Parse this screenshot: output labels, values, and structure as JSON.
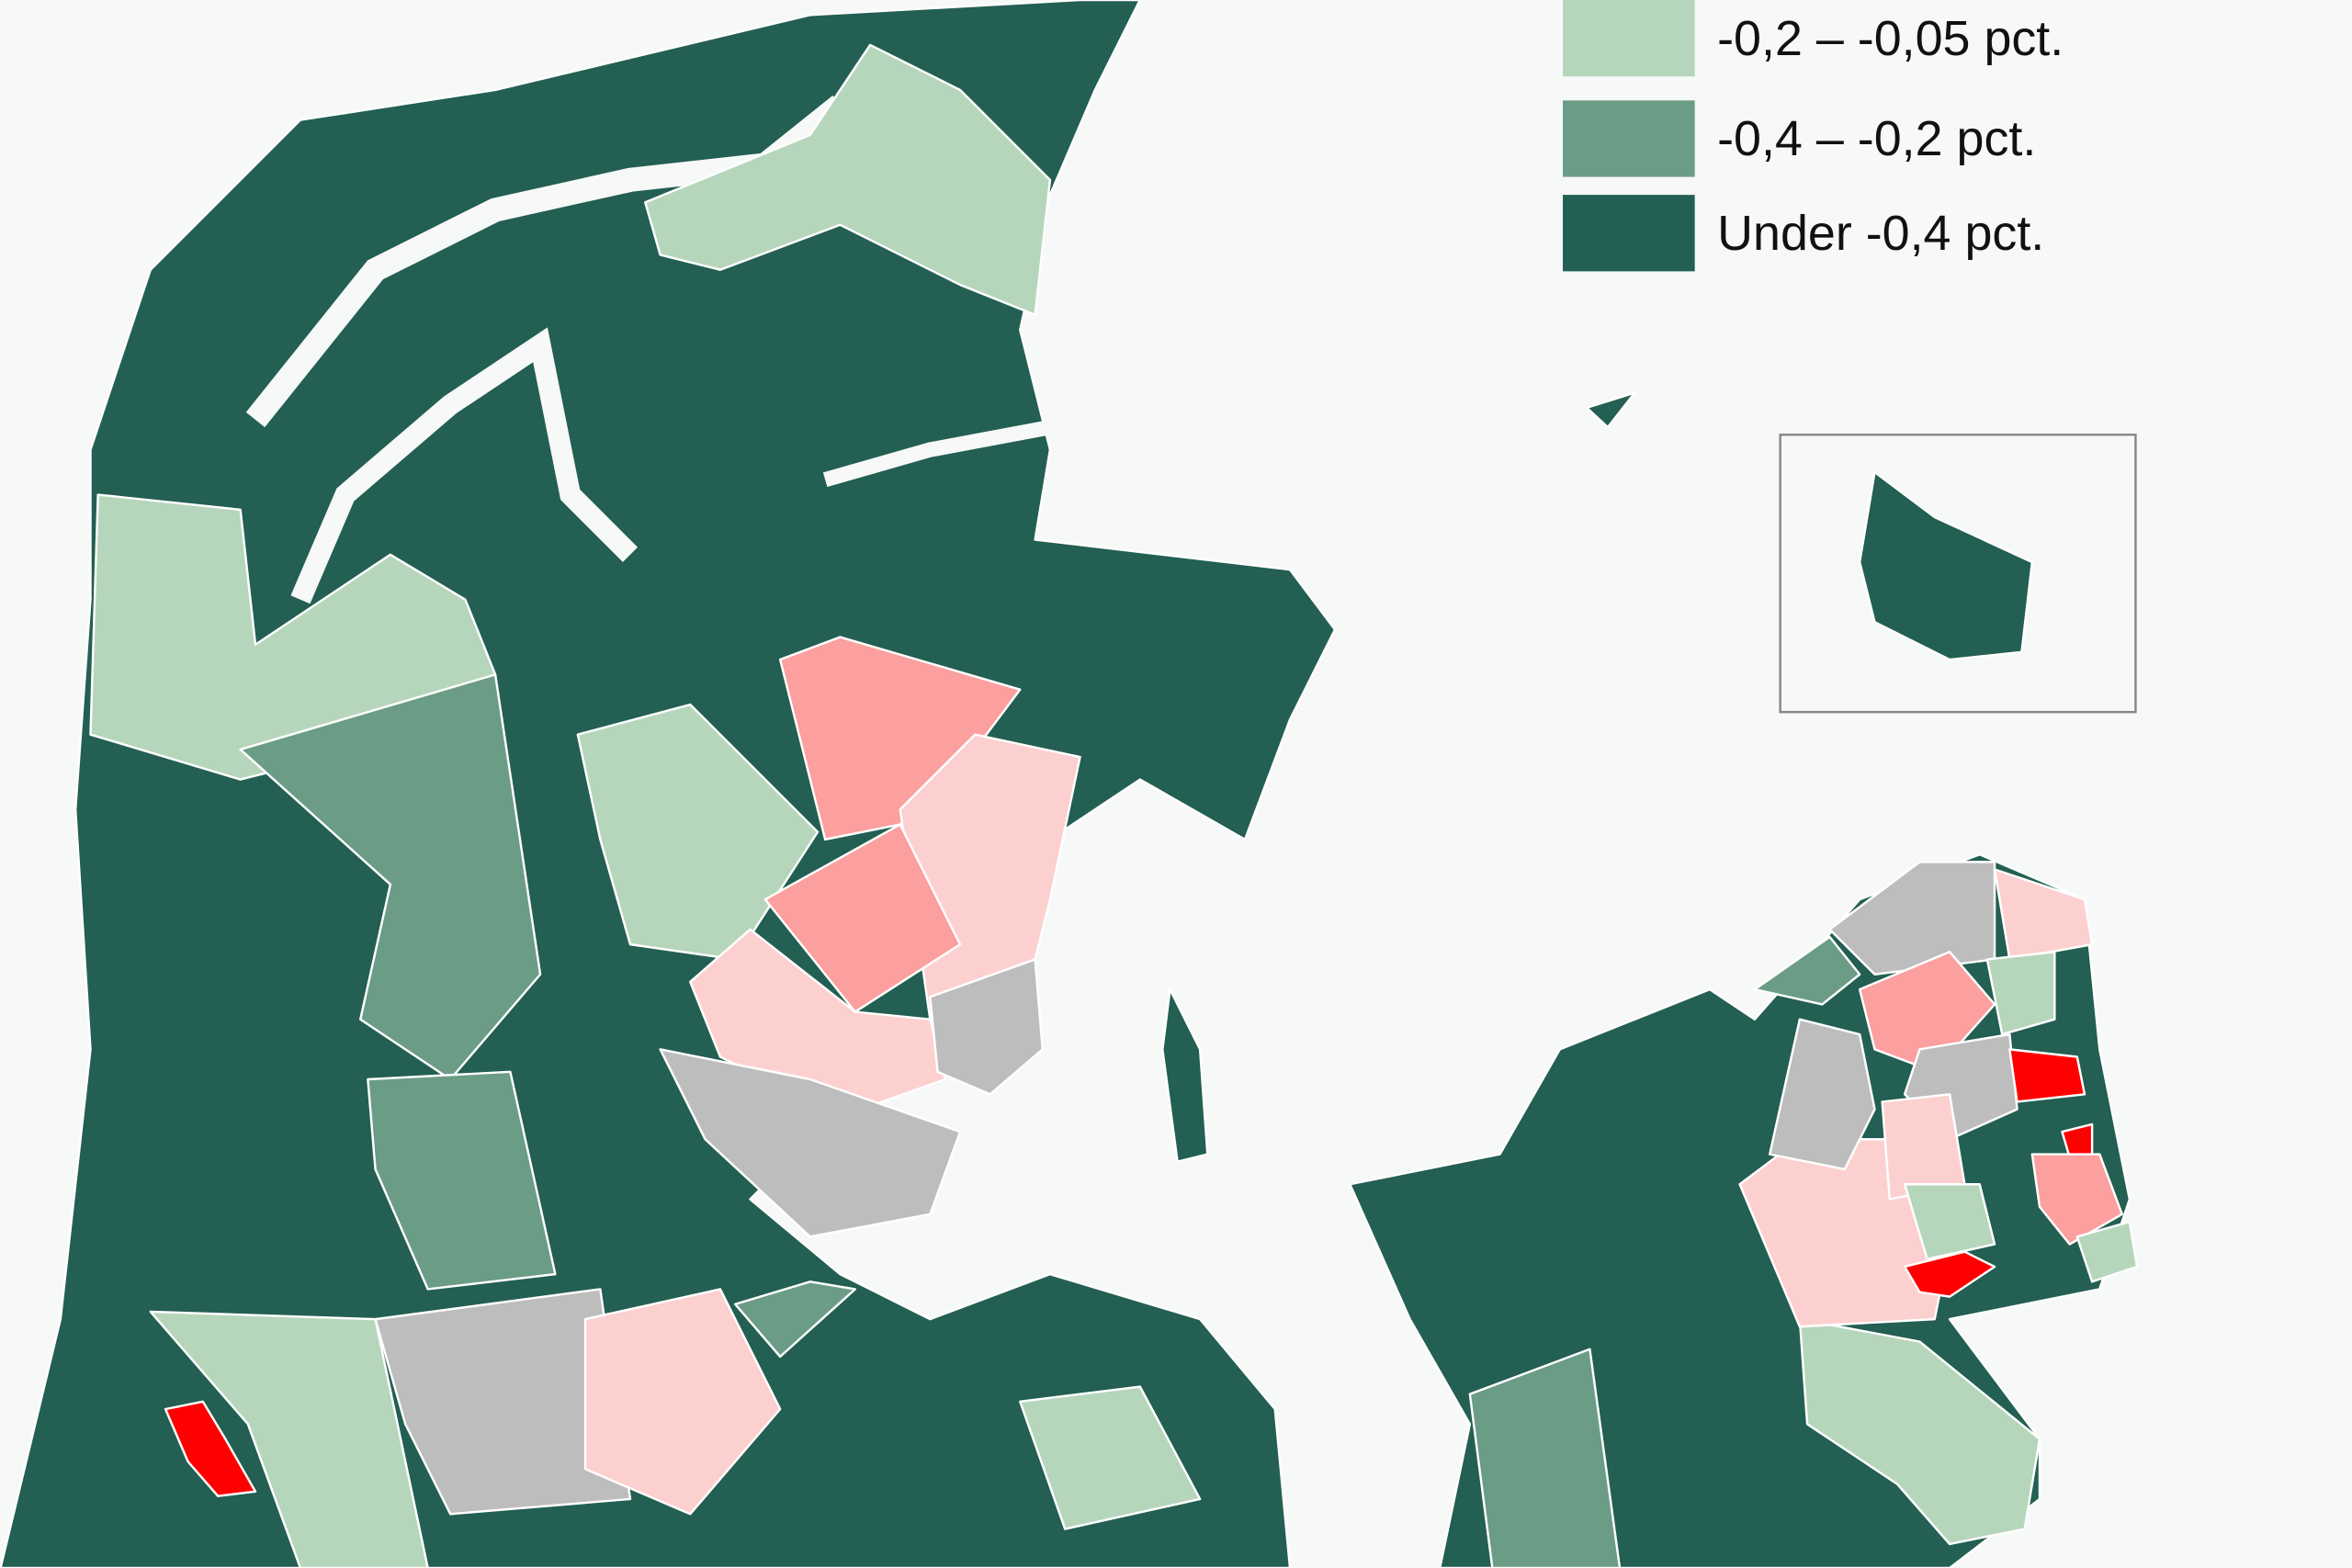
{
  "legend": {
    "items": [
      {
        "label": "-0,2 – -0,05 pct.",
        "color": "#b6d6bb"
      },
      {
        "label": "-0,4 – -0,2 pct.",
        "color": "#6b9c86"
      },
      {
        "label": "Under  -0,4 pct.",
        "color": "#235f52"
      }
    ]
  }
}
